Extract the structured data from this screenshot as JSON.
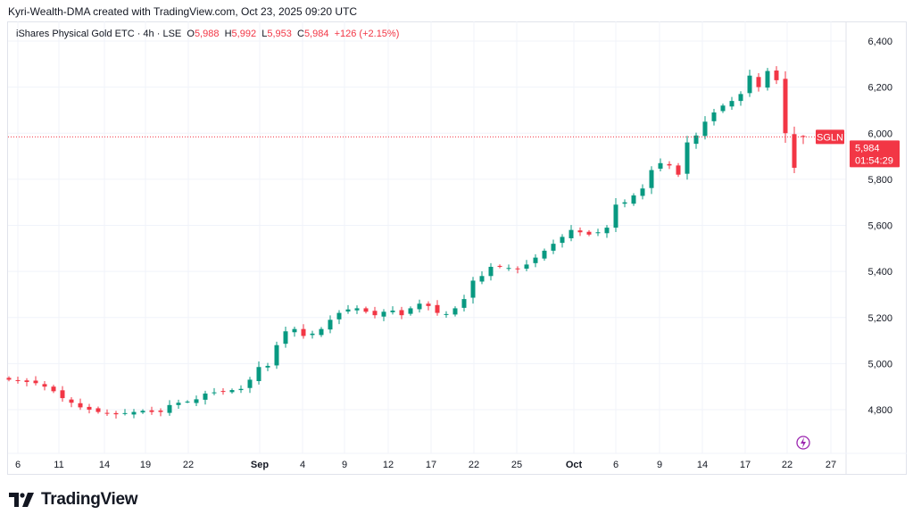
{
  "credit": "Kyri-Wealth-DMA created with TradingView.com, Oct 23, 2025 09:20 UTC",
  "legend": {
    "title": "iShares Physical Gold ETC · 4h · LSE",
    "o_label": "O",
    "o": "5,988",
    "h_label": "H",
    "h": "5,992",
    "l_label": "L",
    "l": "5,953",
    "c_label": "C",
    "c": "5,984",
    "change": "+126 (+2.15%)"
  },
  "price_tag": {
    "symbol": "SGLN",
    "price": "5,984",
    "countdown": "01:54:29"
  },
  "colors": {
    "up": "#089981",
    "down": "#f23645",
    "grid": "#f0f3fa",
    "lightning": "#9c27b0"
  },
  "logo": {
    "text": "TradingView"
  },
  "chart_data": {
    "type": "candlestick",
    "title": "iShares Physical Gold ETC · 4h · LSE",
    "ylim": [
      4620,
      6460
    ],
    "y_ticks": [
      4800,
      5000,
      5200,
      5400,
      5600,
      5800,
      6000,
      6200,
      6400
    ],
    "y_tick_labels": [
      "4,800",
      "5,000",
      "5,200",
      "5,400",
      "5,600",
      "5,800",
      "6,000",
      "6,200",
      "6,400"
    ],
    "x_tick_labels": [
      "6",
      "11",
      "14",
      "19",
      "22",
      "Sep",
      "4",
      "9",
      "12",
      "17",
      "22",
      "25",
      "Oct",
      "6",
      "9",
      "14",
      "17",
      "22",
      "27"
    ],
    "x_tick_bold": [
      false,
      false,
      false,
      false,
      false,
      true,
      false,
      false,
      false,
      false,
      false,
      false,
      true,
      false,
      false,
      false,
      false,
      false,
      false
    ],
    "x_tick_pos": [
      1,
      5.6,
      10.7,
      15.3,
      20.1,
      28.1,
      32.9,
      37.6,
      42.5,
      47.3,
      52.1,
      56.9,
      63.3,
      68,
      72.9,
      77.7,
      82.5,
      87.2,
      92.1
    ],
    "closes": [
      4930,
      4925,
      4920,
      4915,
      4900,
      4880,
      4850,
      4830,
      4810,
      4800,
      4790,
      4785,
      4780,
      4785,
      4790,
      4795,
      4790,
      4790,
      4820,
      4830,
      4835,
      4845,
      4870,
      4875,
      4880,
      4885,
      4890,
      4930,
      4985,
      4990,
      5080,
      5140,
      5150,
      5120,
      5130,
      5150,
      5190,
      5220,
      5235,
      5240,
      5225,
      5210,
      5225,
      5230,
      5210,
      5240,
      5260,
      5250,
      5220,
      5215,
      5240,
      5280,
      5360,
      5380,
      5420,
      5420,
      5415,
      5410,
      5430,
      5460,
      5490,
      5520,
      5550,
      5580,
      5570,
      5560,
      5570,
      5590,
      5690,
      5700,
      5730,
      5760,
      5840,
      5870,
      5860,
      5820,
      5960,
      5990,
      6050,
      6090,
      6120,
      6140,
      6170,
      6250,
      6200,
      6270,
      6230,
      6000,
      5850,
      5984
    ],
    "last": {
      "open": 5988,
      "high": 5992,
      "low": 5953,
      "close": 5984
    }
  }
}
